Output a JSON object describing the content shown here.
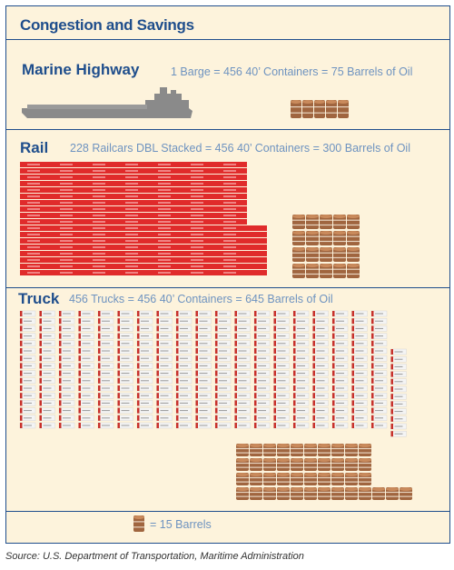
{
  "title": "Congestion and Savings",
  "sections": {
    "marine": {
      "label": "Marine Highway",
      "text": "1 Barge = 456 40’ Containers = 75 Barrels of Oil",
      "barrels": 75
    },
    "rail": {
      "label": "Rail",
      "text": "228 Railcars DBL Stacked = 456 40’ Containers = 300 Barrels of Oil",
      "barrels": 300
    },
    "truck": {
      "label": "Truck",
      "text": "456 Trucks = 456 40’ Containers = 645 Barrels of Oil",
      "barrels": 645
    }
  },
  "legend": {
    "text": "= 15 Barrels",
    "barrels_per_icon": 15
  },
  "source": "Source: U.S. Department of Transportation, Maritime Administration",
  "colors": {
    "frame": "#1f4e8c",
    "panel": "#fdf3dc",
    "label": "#1f4e8c",
    "text": "#6e93c0",
    "barrel": "#a0653f",
    "rail": "#e02b2b",
    "ship": "#8a8a8a"
  }
}
